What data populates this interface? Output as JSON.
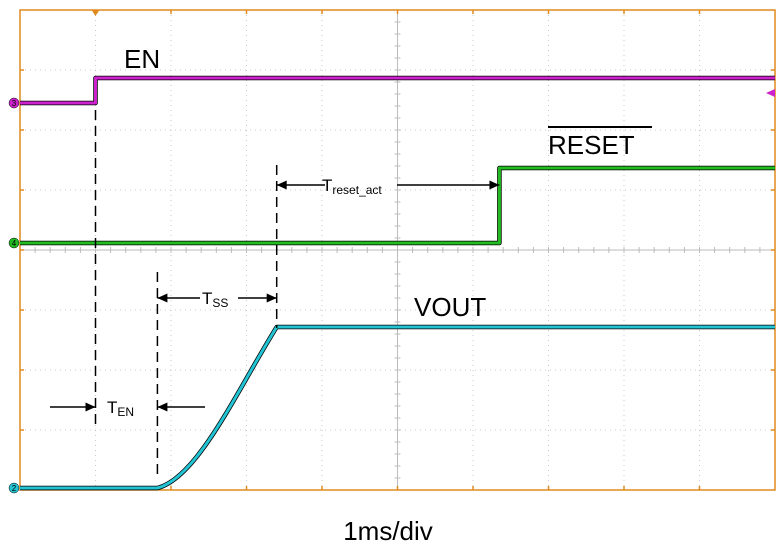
{
  "chart_data": {
    "type": "line",
    "title": "",
    "xlabel": "1ms/div",
    "ylabel": "",
    "x_unit": "ms",
    "xlim": [
      0,
      10
    ],
    "grid": true,
    "divisions": {
      "x": 10,
      "y": 8
    },
    "colors": {
      "EN": "#cc22cc",
      "RESET": "#22bb22",
      "VOUT": "#22c4d4",
      "grid_border": "#e08a1e"
    },
    "series": [
      {
        "name": "EN",
        "channel_marker": "3",
        "x": [
          0,
          1.0,
          1.0,
          10
        ],
        "y": [
          0,
          0,
          1,
          1
        ]
      },
      {
        "name": "RESET",
        "channel_marker": "4",
        "x": [
          0,
          6.35,
          6.35,
          10
        ],
        "y": [
          0,
          0,
          1,
          1
        ]
      },
      {
        "name": "VOUT",
        "channel_marker": "2",
        "x": [
          0,
          1.82,
          2.3,
          2.8,
          3.4,
          10
        ],
        "y": [
          0,
          0,
          0.25,
          0.55,
          1,
          1
        ]
      }
    ],
    "annotations": [
      {
        "label_main": "T",
        "label_sub": "EN",
        "from": 1.0,
        "to": 1.82
      },
      {
        "label_main": "T",
        "label_sub": "SS",
        "from": 1.82,
        "to": 3.4
      },
      {
        "label_main": "T",
        "label_sub": "reset_act",
        "from": 3.4,
        "to": 6.35
      }
    ],
    "labels": {
      "en": "EN",
      "reset": "RESET",
      "vout": "VOUT"
    }
  }
}
